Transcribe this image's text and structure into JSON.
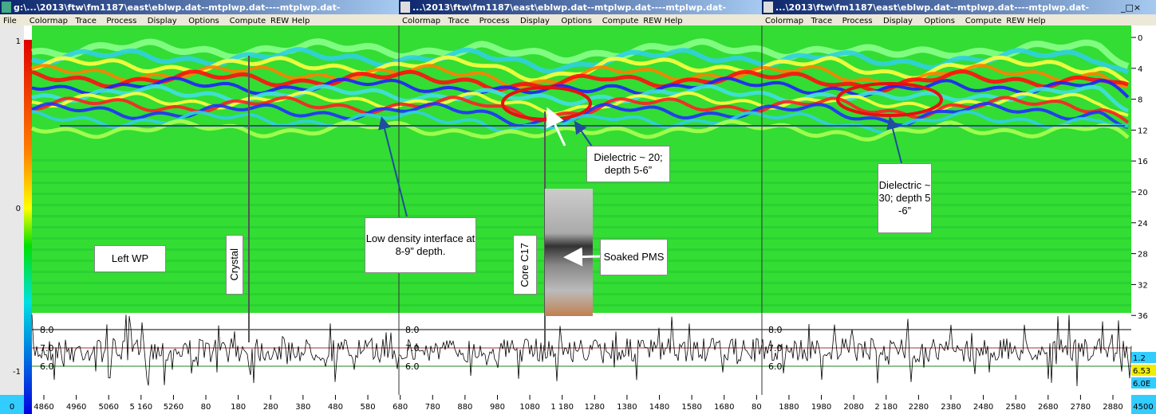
{
  "windows": [
    {
      "title": "g:\\...\\2013\\ftw\\fm1187\\east\\eblwp.dat--mtplwp.dat----mtplwp.dat-"
    },
    {
      "title": "...\\2013\\ftw\\fm1187\\east\\eblwp.dat--mtplwp.dat----mtplwp.dat-"
    },
    {
      "title": "...\\2013\\ftw\\fm1187\\east\\eblwp.dat--mtplwp.dat----mtplwp.dat-"
    }
  ],
  "menu": [
    "File",
    "Colormap",
    "Trace",
    "Process",
    "Display",
    "Options",
    "Compute",
    "REW",
    "Help"
  ],
  "window_buttons": "_□×",
  "annotations": {
    "left_wp": "Left WP",
    "crystal": "Crystal",
    "low_density": "Low density interface at 8-9” depth.",
    "core": "Core C17",
    "dielectric_20": "Dielectric ~ 20; depth 5-6”",
    "soaked": "Soaked PMS",
    "dielectric_30": "Dielectric ~ 30; depth 5-6”"
  },
  "depth_ticks": [
    "0",
    "4",
    "8",
    "12",
    "16",
    "20",
    "24",
    "28",
    "32",
    "36"
  ],
  "amplitude_ticks": [
    "1",
    "0",
    "-1"
  ],
  "trace_levels": [
    "8.0",
    "7.0",
    "6.0"
  ],
  "readouts": [
    "1.2",
    "6.53",
    "6.0E"
  ],
  "distance_ticks": [
    "4860",
    "4960",
    "5060",
    "5 160",
    "5260",
    "80",
    "180",
    "280",
    "380",
    "480",
    "580",
    "680",
    "780",
    "880",
    "980",
    "1080",
    "1 180",
    "1280",
    "1380",
    "1480",
    "1580",
    "1680",
    "80",
    "1880",
    "1980",
    "2080",
    "2 180",
    "2280",
    "2380",
    "2480",
    "2580",
    "2680",
    "2780",
    "2880"
  ],
  "distance_start": "0",
  "distance_end": "4500"
}
